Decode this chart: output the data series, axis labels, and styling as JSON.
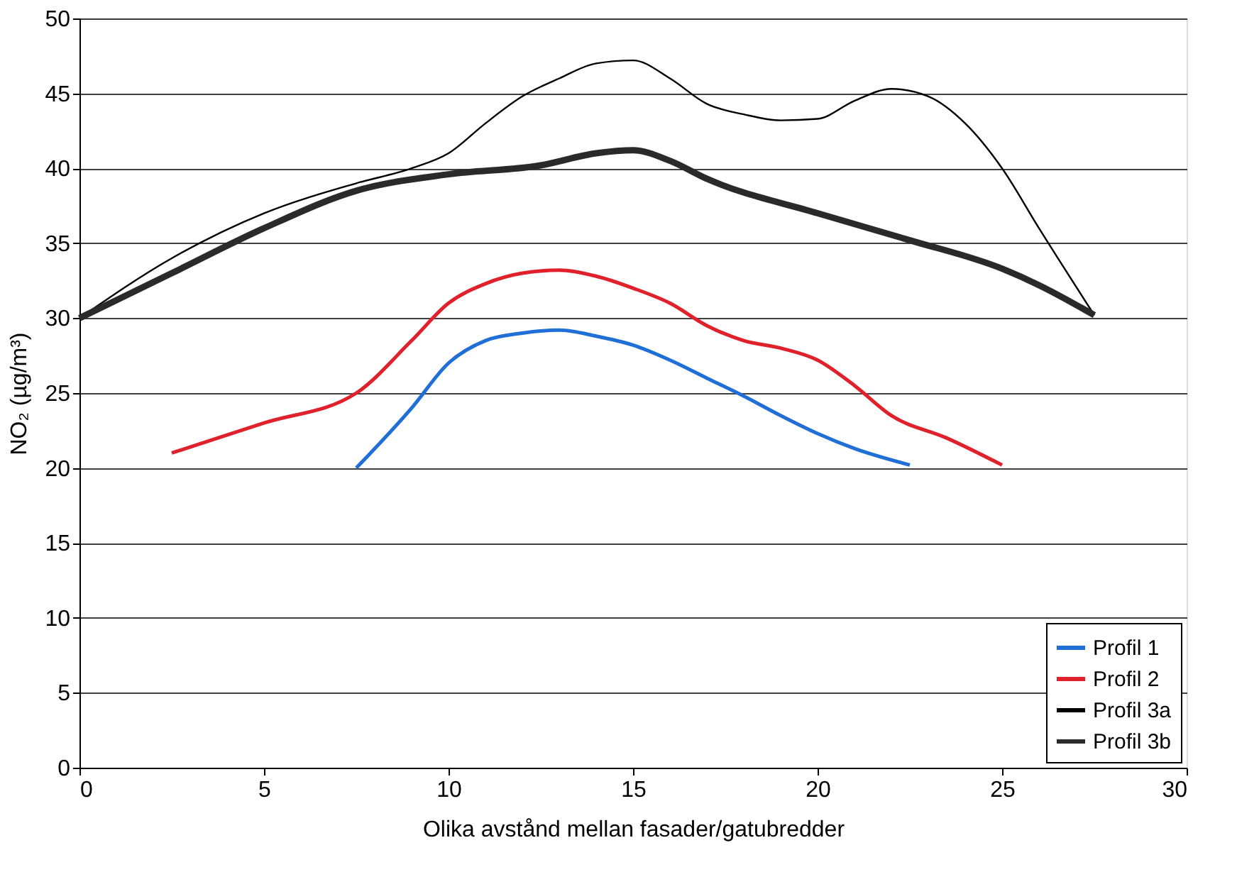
{
  "chart_data": {
    "type": "line",
    "xlabel": "Olika avstånd mellan fasader/gatubredder",
    "ylabel": "NO₂ (µg/m³)",
    "xlim": [
      0,
      30
    ],
    "xticks": [
      0,
      5,
      10,
      15,
      20,
      25,
      30
    ],
    "ylim": [
      0,
      50
    ],
    "yticks": [
      0,
      5,
      10,
      15,
      20,
      25,
      30,
      35,
      40,
      45,
      50
    ],
    "grid": "y",
    "legend": "bottom right",
    "marker": "none",
    "line_style": "solid",
    "series": [
      {
        "name": "Profil 1",
        "color": "#1f6fd6",
        "x": [
          7.5,
          9,
          10,
          11,
          12,
          13,
          14,
          15,
          16,
          17,
          18,
          19,
          20,
          21,
          22.5
        ],
        "values": [
          20,
          24,
          27,
          28.5,
          29,
          29.2,
          28.8,
          28.2,
          27.2,
          26,
          24.8,
          23.5,
          22.3,
          21.3,
          20.2
        ]
      },
      {
        "name": "Profil 2",
        "color": "#e0202a",
        "x": [
          2.5,
          5,
          7.5,
          9,
          10,
          11,
          12,
          13,
          14,
          15,
          16,
          17,
          18,
          19,
          20,
          21,
          22,
          23.5,
          25
        ],
        "values": [
          21,
          23,
          25,
          28.5,
          31,
          32.3,
          33,
          33.2,
          32.8,
          32,
          31,
          29.5,
          28.5,
          28,
          27.2,
          25.5,
          23.5,
          22,
          20.2
        ]
      },
      {
        "name": "Profil 3a",
        "color": "#000000",
        "x": [
          0,
          2.5,
          5,
          7.5,
          9,
          10,
          11,
          12,
          13,
          14,
          15,
          16,
          17,
          18,
          19,
          20,
          21,
          22,
          23,
          24,
          25,
          26,
          27.5
        ],
        "values": [
          30,
          34,
          37,
          39,
          40,
          41,
          43,
          44.8,
          46,
          47,
          47.2,
          46,
          44.3,
          43.6,
          43.2,
          43.3,
          44.5,
          45.3,
          44.8,
          43,
          40,
          36,
          30.2
        ]
      },
      {
        "name": "Profil 3b",
        "color": "#2a2a2a",
        "x": [
          0,
          2.5,
          5,
          7.5,
          10,
          12.5,
          14,
          15,
          16,
          17,
          20,
          22.5,
          25,
          26,
          27.5
        ],
        "values": [
          30,
          33,
          36,
          38.5,
          39.6,
          40.2,
          41,
          41.2,
          40.5,
          39.3,
          37,
          35.2,
          33.3,
          32.2,
          30.2
        ]
      }
    ]
  }
}
